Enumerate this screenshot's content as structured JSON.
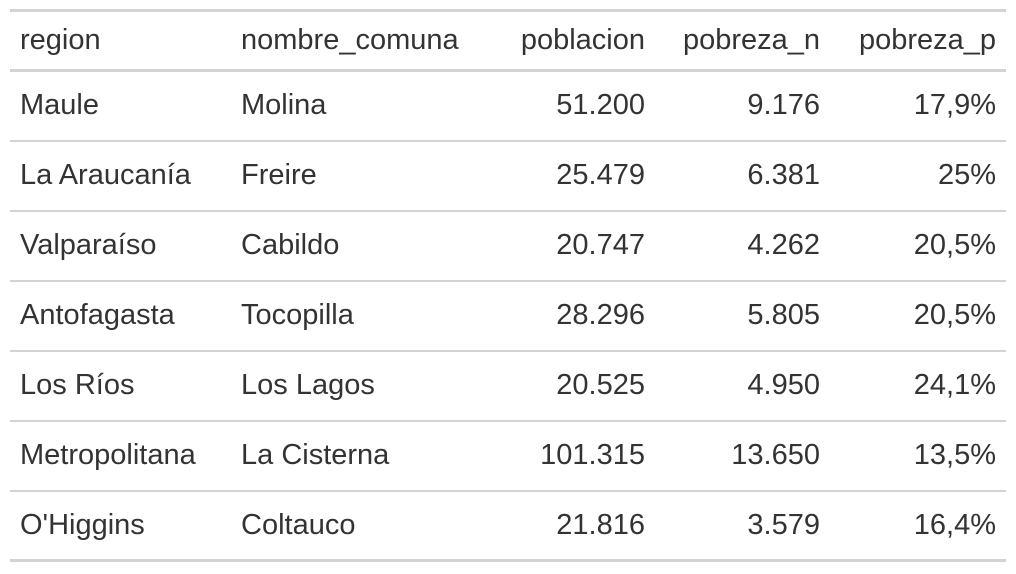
{
  "table": {
    "headers": [
      "region",
      "nombre_comuna",
      "poblacion",
      "pobreza_n",
      "pobreza_p"
    ],
    "rows": [
      [
        "Maule",
        "Molina",
        "51.200",
        "9.176",
        "17,9%"
      ],
      [
        "La Araucanía",
        "Freire",
        "25.479",
        "6.381",
        "25%"
      ],
      [
        "Valparaíso",
        "Cabildo",
        "20.747",
        "4.262",
        "20,5%"
      ],
      [
        "Antofagasta",
        "Tocopilla",
        "28.296",
        "5.805",
        "20,5%"
      ],
      [
        "Los Ríos",
        "Los Lagos",
        "20.525",
        "4.950",
        "24,1%"
      ],
      [
        "Metropolitana",
        "La Cisterna",
        "101.315",
        "13.650",
        "13,5%"
      ],
      [
        "O'Higgins",
        "Coltauco",
        "21.816",
        "3.579",
        "16,4%"
      ]
    ]
  }
}
